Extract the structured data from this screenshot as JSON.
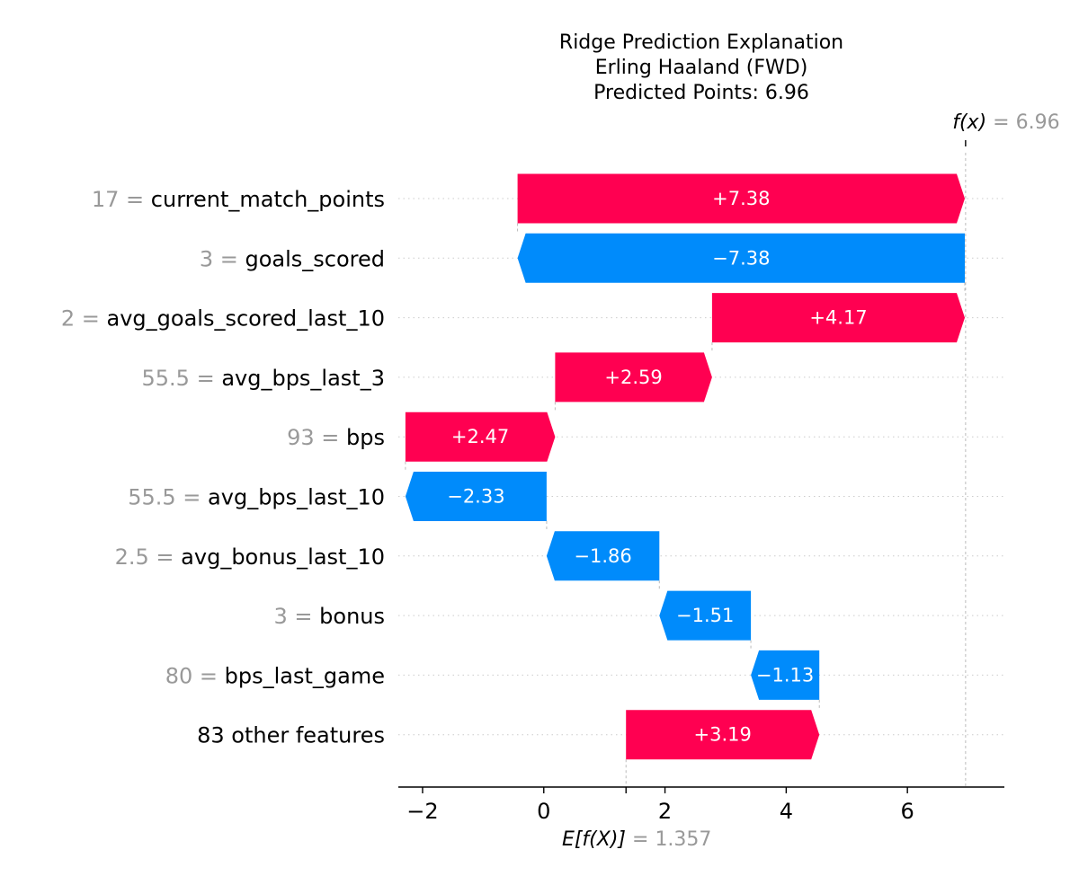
{
  "chart_data": {
    "type": "waterfall",
    "title": [
      "Ridge Prediction Explanation",
      "Erling Haaland (FWD)",
      "Predicted Points: 6.96"
    ],
    "base_value": 1.357,
    "base_value_label": "1.357",
    "final_value": 6.96,
    "final_value_label": "6.96",
    "fx_label": "f(x)",
    "ex_label": "E[f(X)]",
    "equals": "=",
    "xlim": [
      -2.4,
      7.6
    ],
    "xticks": [
      -2,
      0,
      2,
      4,
      6
    ],
    "xtick_labels": [
      "−2",
      "0",
      "2",
      "4",
      "6"
    ],
    "features": [
      {
        "value": "17",
        "name": "current_match_points",
        "contribution": 7.38,
        "label": "+7.38"
      },
      {
        "value": "3",
        "name": "goals_scored",
        "contribution": -7.38,
        "label": "−7.38"
      },
      {
        "value": "2",
        "name": "avg_goals_scored_last_10",
        "contribution": 4.17,
        "label": "+4.17"
      },
      {
        "value": "55.5",
        "name": "avg_bps_last_3",
        "contribution": 2.59,
        "label": "+2.59"
      },
      {
        "value": "93",
        "name": "bps",
        "contribution": 2.47,
        "label": "+2.47"
      },
      {
        "value": "55.5",
        "name": "avg_bps_last_10",
        "contribution": -2.33,
        "label": "−2.33"
      },
      {
        "value": "2.5",
        "name": "avg_bonus_last_10",
        "contribution": -1.86,
        "label": "−1.86"
      },
      {
        "value": "3",
        "name": "bonus",
        "contribution": -1.51,
        "label": "−1.51"
      },
      {
        "value": "80",
        "name": "bps_last_game",
        "contribution": -1.13,
        "label": "−1.13"
      },
      {
        "value": "",
        "name": "83 other features",
        "contribution": 3.19,
        "label": "+3.19"
      }
    ],
    "colors": {
      "positive": "#ff0051",
      "negative": "#008bfb",
      "value_text": "#999999",
      "gridline": "#cccccc",
      "connector": "#bbbbbb"
    }
  }
}
